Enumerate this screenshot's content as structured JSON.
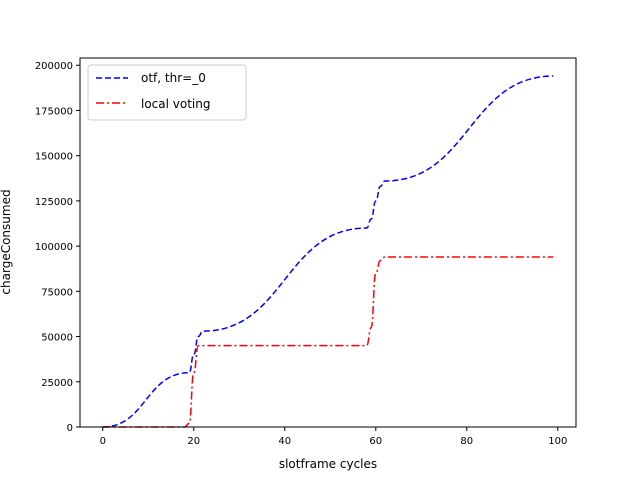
{
  "chart_data": {
    "type": "line",
    "xlabel": "slotframe cycles",
    "ylabel": "chargeConsumed",
    "xlim": [
      -5,
      104
    ],
    "ylim": [
      0,
      204000
    ],
    "xticks": [
      0,
      20,
      40,
      60,
      80,
      100
    ],
    "yticks": [
      0,
      25000,
      50000,
      75000,
      100000,
      125000,
      150000,
      175000,
      200000
    ],
    "legend_position": "top-left",
    "grid": false,
    "series": [
      {
        "name": "otf, thr=_0",
        "color": "#0000ff",
        "linestyle": "dashed",
        "x": [
          0,
          19,
          20,
          21,
          22,
          58,
          59,
          60,
          61,
          62,
          99
        ],
        "y": [
          0,
          30000,
          40000,
          50000,
          53000,
          110000,
          115000,
          125000,
          133000,
          136000,
          194000
        ]
      },
      {
        "name": "local voting",
        "color": "#ff0000",
        "linestyle": "dashdot",
        "x": [
          0,
          18,
          19,
          20,
          21,
          58,
          59,
          60,
          61,
          62,
          99
        ],
        "y": [
          0,
          0,
          2000,
          30000,
          45000,
          45000,
          55000,
          85000,
          92000,
          94000,
          94000
        ]
      }
    ]
  }
}
